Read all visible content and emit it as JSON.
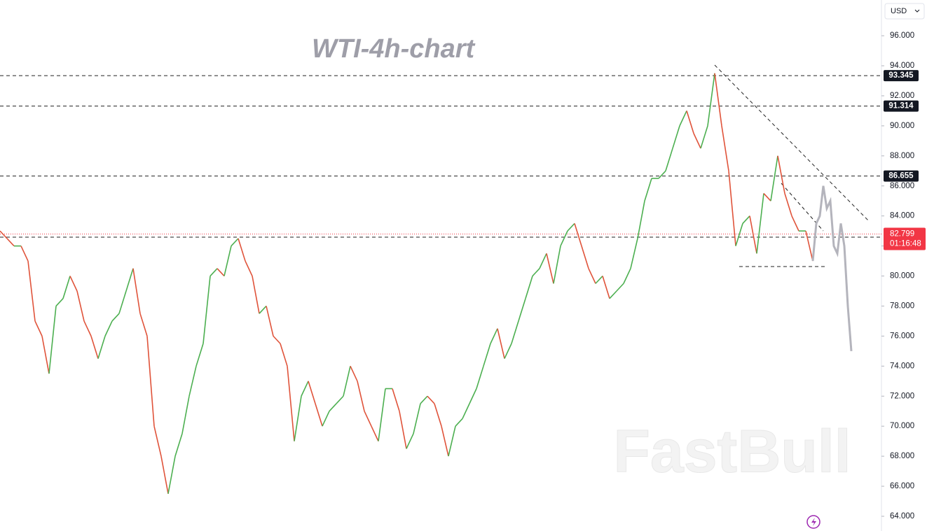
{
  "chart_data": {
    "type": "line",
    "title": "WTI-4h-chart",
    "watermark": "FastBull",
    "currency": "USD",
    "ylim": [
      63.02,
      98.38
    ],
    "yticks": [
      {
        "value": 64,
        "label": "64.000"
      },
      {
        "value": 66,
        "label": "66.000"
      },
      {
        "value": 68,
        "label": "68.000"
      },
      {
        "value": 70,
        "label": "70.000"
      },
      {
        "value": 72,
        "label": "72.000"
      },
      {
        "value": 74,
        "label": "74.000"
      },
      {
        "value": 76,
        "label": "76.000"
      },
      {
        "value": 78,
        "label": "78.000"
      },
      {
        "value": 80,
        "label": "80.000"
      },
      {
        "value": 82,
        "label": "82.000"
      },
      {
        "value": 84,
        "label": "84.000"
      },
      {
        "value": 86,
        "label": "86.000"
      },
      {
        "value": 88,
        "label": "88.000"
      },
      {
        "value": 90,
        "label": "90.000"
      },
      {
        "value": 92,
        "label": "92.000"
      },
      {
        "value": 94,
        "label": "94.000"
      },
      {
        "value": 96,
        "label": "96.000"
      }
    ],
    "up_color": "#4caf50",
    "down_color": "#e0533a",
    "series": [
      {
        "color": "#8a8a3a",
        "values": [
          83,
          82.5,
          82,
          82,
          81,
          77,
          76,
          73.5,
          78,
          78.5,
          80,
          79,
          77,
          76,
          74.5,
          76,
          77,
          77.5,
          79,
          80.5,
          77.5,
          76,
          70,
          68,
          65.5,
          68,
          69.5,
          72,
          74,
          75.5,
          80,
          80.5,
          80,
          82,
          82.5,
          81,
          80,
          77.5,
          78,
          76,
          75.5,
          74,
          69,
          72,
          73,
          71.5,
          70,
          71,
          71.5,
          72,
          74,
          73,
          71,
          70,
          69,
          72.5,
          72.5,
          71,
          68.5,
          69.5,
          71.5,
          72,
          71.5,
          70,
          68,
          70,
          70.5,
          71.5,
          72.5,
          74,
          75.5,
          76.5,
          74.5,
          75.5,
          77,
          78.5,
          80,
          80.5,
          81.5,
          79.5,
          82,
          83,
          83.5,
          82,
          80.5,
          79.5,
          80,
          78.5,
          79,
          79.5,
          80.5,
          82.5,
          85,
          86.5,
          86.5,
          87,
          88.5,
          90,
          91,
          89.5,
          88.5,
          90,
          93.5,
          90,
          87,
          82,
          83.5,
          84,
          81.5,
          85.5,
          85,
          88,
          85.5,
          84,
          83,
          83,
          81
        ]
      },
      {
        "color": "#b4b4bc",
        "values": [
          81,
          83.5,
          84,
          86,
          84.5,
          85,
          82,
          81.5,
          83.5,
          82,
          78,
          75
        ]
      }
    ],
    "levels": [
      {
        "value": 93.345,
        "label": "93.345"
      },
      {
        "value": 91.314,
        "label": "91.314"
      },
      {
        "value": 86.655,
        "label": "86.655"
      }
    ],
    "current_price": {
      "value": 82.799,
      "label": "82.799",
      "timer": "01:16:48",
      "color": "#f23645"
    }
  }
}
